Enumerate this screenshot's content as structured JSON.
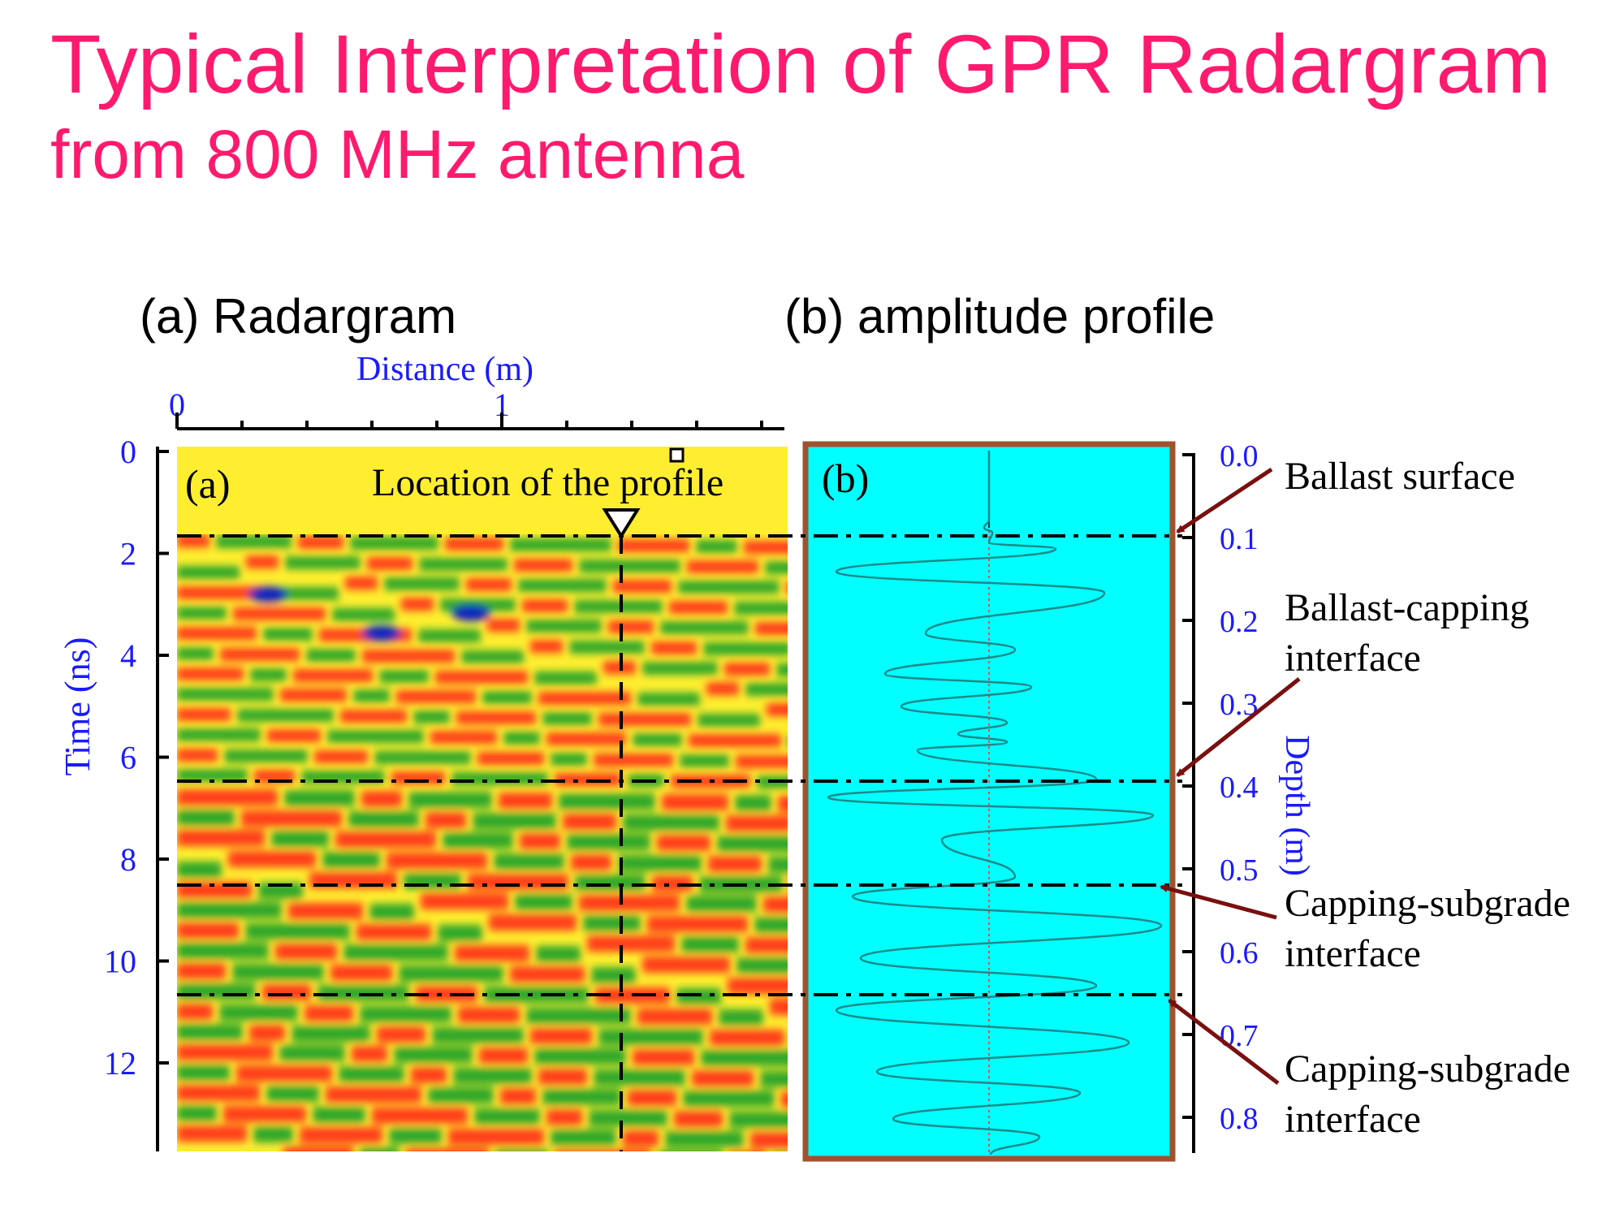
{
  "title": "Typical Interpretation of GPR Radargram",
  "subtitle": "from 800 MHz antenna",
  "panel_a": {
    "heading": "(a) Radargram",
    "x_axis_label": "Distance (m)",
    "x_ticks": [
      "0",
      "1"
    ],
    "y_axis_label": "Time (ns)",
    "y_ticks": [
      "0",
      "2",
      "4",
      "6",
      "8",
      "10",
      "12"
    ],
    "inset_label": "(a)",
    "profile_label": "Location of the profile"
  },
  "panel_b": {
    "heading": "(b) amplitude profile",
    "inset_label": "(b)",
    "depth_axis_label": "Depth (m)",
    "depth_ticks": [
      "0.0",
      "0.1",
      "0.2",
      "0.3",
      "0.4",
      "0.5",
      "0.6",
      "0.7",
      "0.8"
    ]
  },
  "annotations": [
    {
      "lines": [
        "Ballast surface"
      ]
    },
    {
      "lines": [
        "Ballast-capping",
        "interface"
      ]
    },
    {
      "lines": [
        "Capping-subgrade",
        "interface"
      ]
    },
    {
      "lines": [
        "Capping-subgrade",
        "interface"
      ]
    }
  ],
  "colors": {
    "title": "#ff1a6e",
    "axis_text": "#1a1aff",
    "arrow": "#7a0f0f",
    "panel_b_bg": "#00ffff",
    "panel_b_border": "#a0522d",
    "trace": "#1b8a8a",
    "radargram_red": "#ff2a1a",
    "radargram_green": "#14a02a",
    "radargram_yellow": "#ffff1e",
    "radargram_blue": "#1020c0"
  }
}
